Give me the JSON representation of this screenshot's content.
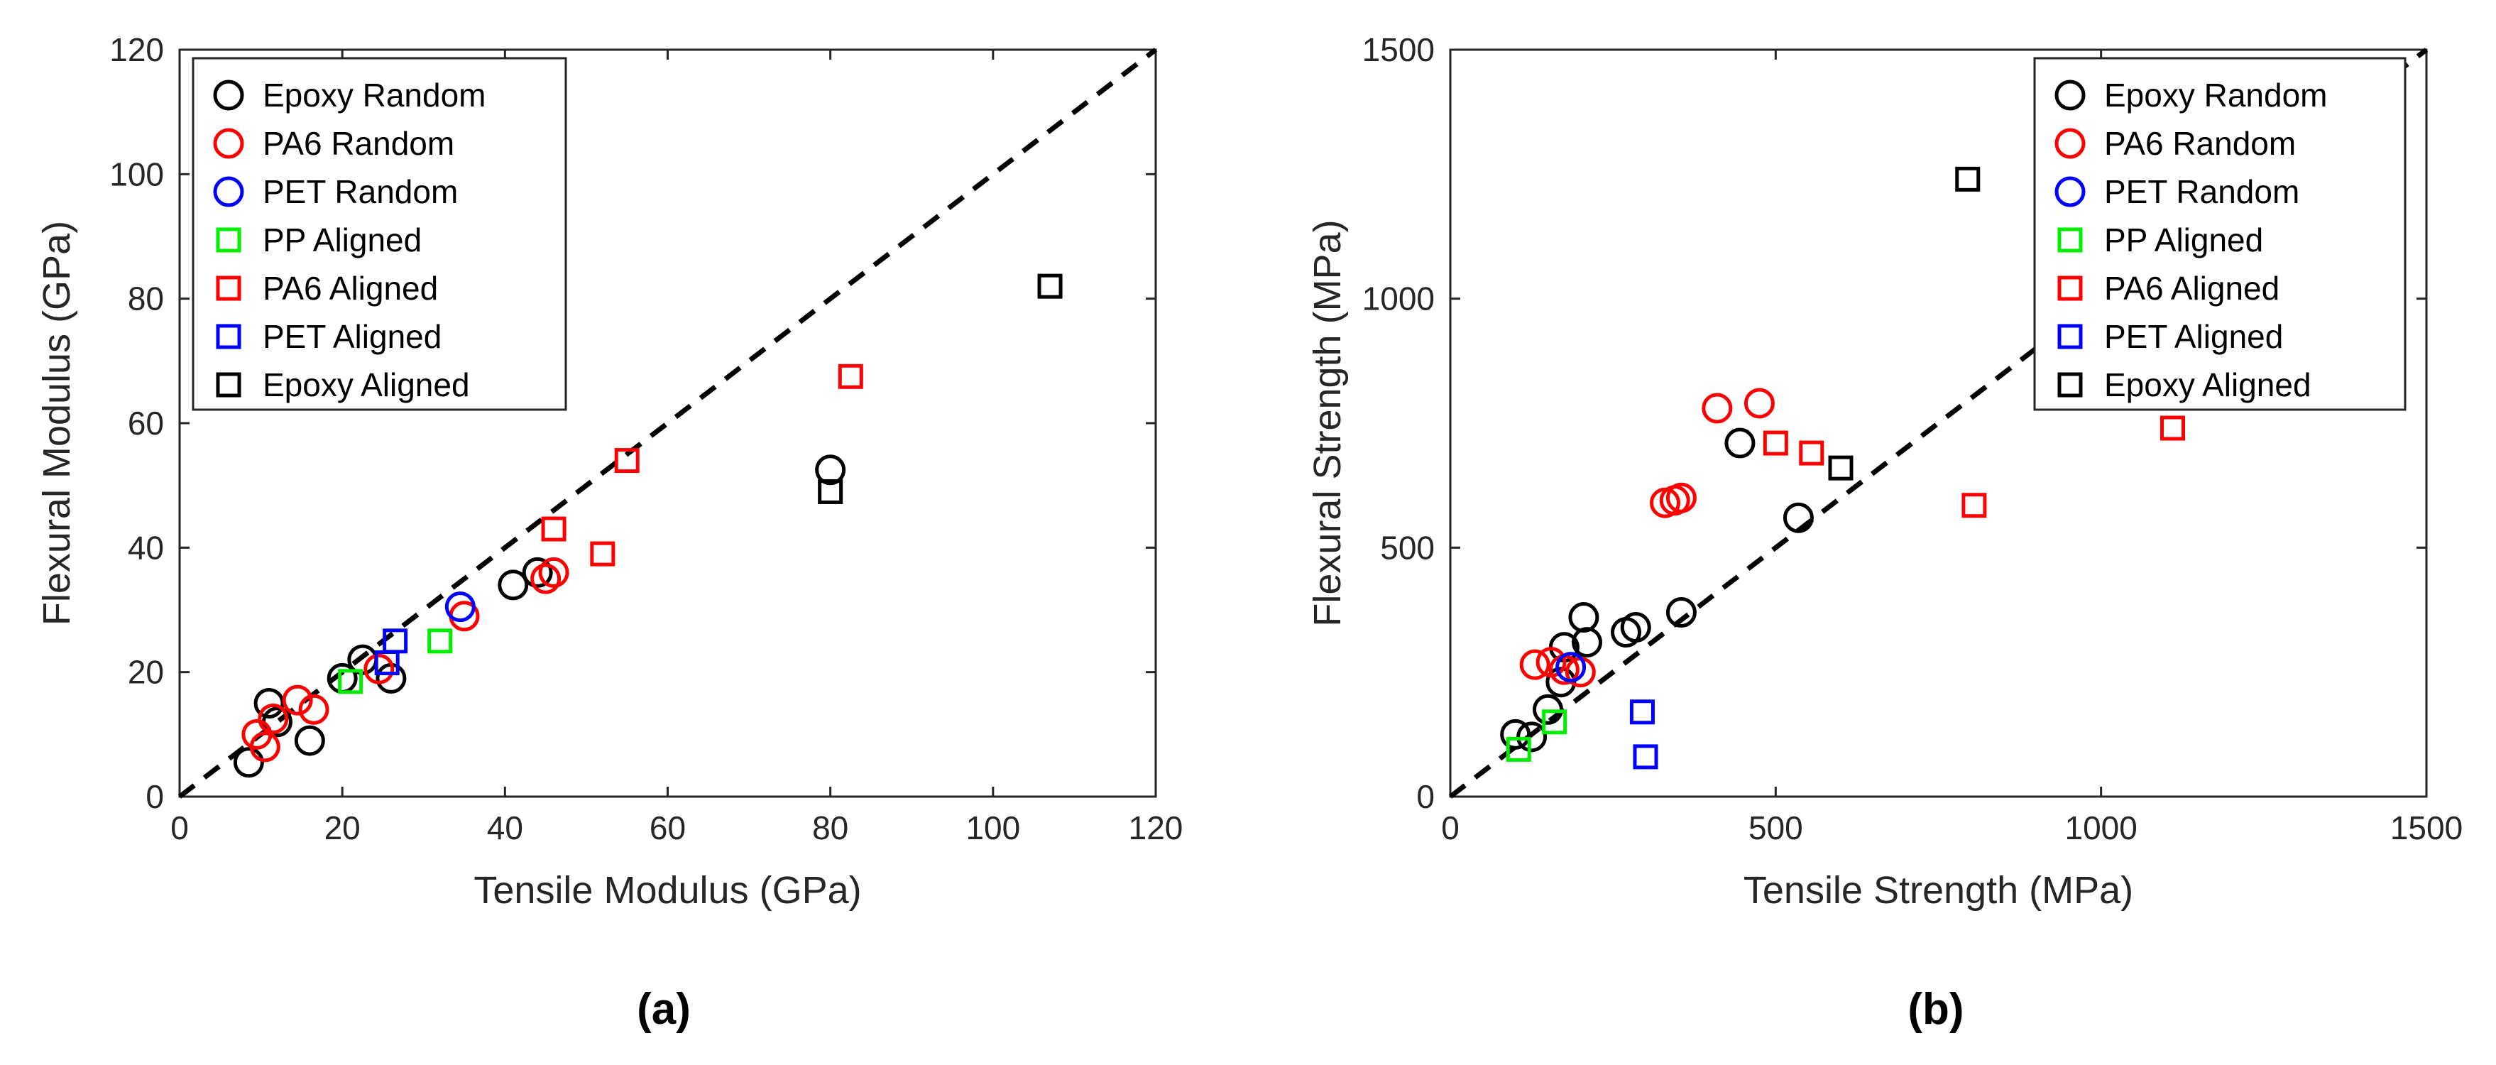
{
  "chart_data": [
    {
      "type": "scatter",
      "panel_label": "(a)",
      "xlabel": "Tensile Modulus (GPa)",
      "ylabel": "Flexural Modulus (GPa)",
      "xlim": [
        0,
        120
      ],
      "ylim": [
        0,
        120
      ],
      "xticks": [
        "0",
        "20",
        "40",
        "60",
        "80",
        "100",
        "120"
      ],
      "yticks": [
        "0",
        "20",
        "40",
        "60",
        "80",
        "100",
        "120"
      ],
      "grid": false,
      "legend_position": "top-left",
      "reference_line": {
        "type": "dashed",
        "points": [
          [
            0,
            0
          ],
          [
            120,
            120
          ]
        ]
      },
      "series": [
        {
          "name": "Epoxy Random",
          "marker": "circle",
          "color": "#000000",
          "points": [
            [
              8.5,
              5.5
            ],
            [
              11,
              15
            ],
            [
              12,
              12
            ],
            [
              16,
              9
            ],
            [
              20,
              19
            ],
            [
              22.5,
              22
            ],
            [
              26,
              19
            ],
            [
              41,
              34
            ],
            [
              44,
              36
            ],
            [
              80,
              52.5
            ]
          ]
        },
        {
          "name": "PA6 Random",
          "marker": "circle",
          "color": "#ff0000",
          "points": [
            [
              9.5,
              10
            ],
            [
              10.5,
              8
            ],
            [
              11.5,
              12.5
            ],
            [
              14.5,
              15.5
            ],
            [
              16.5,
              14
            ],
            [
              24.5,
              20.5
            ],
            [
              35,
              29
            ],
            [
              45,
              35
            ],
            [
              46,
              36
            ]
          ]
        },
        {
          "name": "PET Random",
          "marker": "circle",
          "color": "#0000ff",
          "points": [
            [
              34.5,
              30.5
            ]
          ]
        },
        {
          "name": "PP Aligned",
          "marker": "square",
          "color": "#00ee00",
          "points": [
            [
              21,
              18.5
            ],
            [
              32,
              25
            ]
          ]
        },
        {
          "name": "PA6 Aligned",
          "marker": "square",
          "color": "#ff0000",
          "points": [
            [
              46,
              43
            ],
            [
              52,
              39
            ],
            [
              55,
              54
            ],
            [
              82.5,
              67.5
            ]
          ]
        },
        {
          "name": "PET Aligned",
          "marker": "square",
          "color": "#0000ff",
          "points": [
            [
              25.5,
              21.5
            ],
            [
              26.5,
              25
            ]
          ]
        },
        {
          "name": "Epoxy Aligned",
          "marker": "square",
          "color": "#000000",
          "points": [
            [
              80,
              49
            ],
            [
              107,
              82
            ]
          ]
        }
      ]
    },
    {
      "type": "scatter",
      "panel_label": "(b)",
      "xlabel": "Tensile Strength (MPa)",
      "ylabel": "Flexural Strength (MPa)",
      "xlim": [
        0,
        1500
      ],
      "ylim": [
        0,
        1500
      ],
      "xticks": [
        "0",
        "500",
        "1000",
        "1500"
      ],
      "yticks": [
        "0",
        "500",
        "1000",
        "1500"
      ],
      "grid": false,
      "legend_position": "top-right",
      "reference_line": {
        "type": "dashed",
        "points": [
          [
            0,
            0
          ],
          [
            1500,
            1500
          ]
        ]
      },
      "series": [
        {
          "name": "Epoxy Random",
          "marker": "circle",
          "color": "#000000",
          "points": [
            [
              100,
              125
            ],
            [
              125,
              120
            ],
            [
              150,
              175
            ],
            [
              170,
              230
            ],
            [
              175,
              300
            ],
            [
              205,
              360
            ],
            [
              210,
              310
            ],
            [
              270,
              330
            ],
            [
              285,
              340
            ],
            [
              355,
              370
            ],
            [
              445,
              710
            ],
            [
              535,
              560
            ]
          ]
        },
        {
          "name": "PA6 Random",
          "marker": "circle",
          "color": "#ff0000",
          "points": [
            [
              130,
              265
            ],
            [
              155,
              270
            ],
            [
              175,
              255
            ],
            [
              200,
              250
            ],
            [
              330,
              590
            ],
            [
              345,
              595
            ],
            [
              355,
              600
            ],
            [
              410,
              780
            ],
            [
              475,
              790
            ]
          ]
        },
        {
          "name": "PET Random",
          "marker": "circle",
          "color": "#0000ff",
          "points": [
            [
              185,
              260
            ]
          ]
        },
        {
          "name": "PP Aligned",
          "marker": "square",
          "color": "#00ee00",
          "points": [
            [
              105,
              95
            ],
            [
              160,
              150
            ]
          ]
        },
        {
          "name": "PA6 Aligned",
          "marker": "square",
          "color": "#ff0000",
          "points": [
            [
              500,
              710
            ],
            [
              555,
              690
            ],
            [
              805,
              585
            ],
            [
              1110,
              740
            ]
          ]
        },
        {
          "name": "PET Aligned",
          "marker": "square",
          "color": "#0000ff",
          "points": [
            [
              295,
              170
            ],
            [
              300,
              80
            ]
          ]
        },
        {
          "name": "Epoxy Aligned",
          "marker": "square",
          "color": "#000000",
          "points": [
            [
              600,
              660
            ],
            [
              795,
              1240
            ]
          ]
        }
      ]
    }
  ]
}
